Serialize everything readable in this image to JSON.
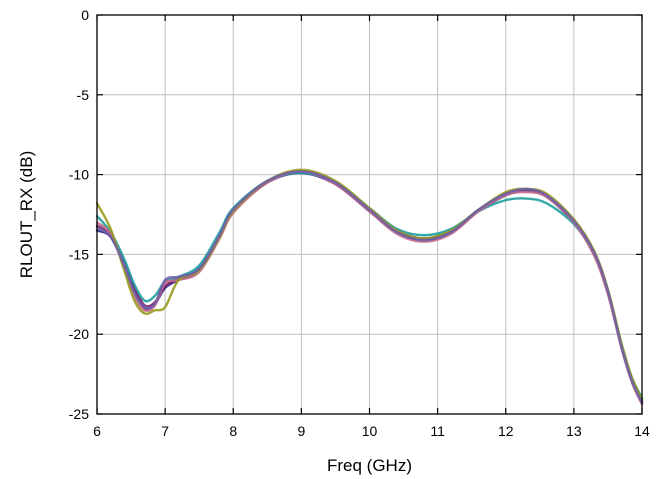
{
  "chart_data": {
    "type": "line",
    "title": "",
    "xlabel": "Freq (GHz)",
    "ylabel": "RLOUT_RX (dB)",
    "xlim": [
      6,
      14
    ],
    "ylim": [
      -25,
      0
    ],
    "xticks": [
      6,
      7,
      8,
      9,
      10,
      11,
      12,
      13,
      14
    ],
    "yticks": [
      0,
      -5,
      -10,
      -15,
      -20,
      -25
    ],
    "xtick_labels": [
      "6",
      "7",
      "8",
      "9",
      "10",
      "11",
      "12",
      "13",
      "14"
    ],
    "ytick_labels": [
      "0",
      "-5",
      "-10",
      "-15",
      "-20",
      "-25"
    ],
    "grid": true,
    "legend": "none",
    "series": [
      {
        "color": "#2d2d8c",
        "x": [
          6,
          6.2,
          6.4,
          6.55,
          6.7,
          6.85,
          7.0,
          7.2,
          7.5,
          7.8,
          8.0,
          8.5,
          9.0,
          9.5,
          10.0,
          10.4,
          10.8,
          11.2,
          11.6,
          12.0,
          12.3,
          12.6,
          13.0,
          13.3,
          13.5,
          13.7,
          13.85,
          14.0
        ],
        "y": [
          -13.5,
          -13.9,
          -15.6,
          -17.2,
          -18.4,
          -18.1,
          -17.1,
          -16.6,
          -16.0,
          -13.9,
          -12.3,
          -10.5,
          -9.9,
          -10.6,
          -12.3,
          -13.6,
          -14.1,
          -13.6,
          -12.3,
          -11.3,
          -11.0,
          -11.4,
          -13.0,
          -15.0,
          -17.4,
          -20.8,
          -22.9,
          -24.3
        ]
      },
      {
        "color": "#7b1f6e",
        "x": [
          6,
          6.2,
          6.4,
          6.55,
          6.7,
          6.85,
          7.0,
          7.2,
          7.5,
          7.8,
          8.0,
          8.5,
          9.0,
          9.5,
          10.0,
          10.4,
          10.8,
          11.2,
          11.6,
          12.0,
          12.3,
          12.6,
          13.0,
          13.3,
          13.5,
          13.7,
          13.85,
          14.0
        ],
        "y": [
          -13.2,
          -13.8,
          -15.5,
          -17.1,
          -18.2,
          -18.0,
          -17.0,
          -16.5,
          -15.9,
          -13.8,
          -12.2,
          -10.4,
          -9.8,
          -10.5,
          -12.2,
          -13.5,
          -14.0,
          -13.5,
          -12.2,
          -11.2,
          -10.9,
          -11.3,
          -12.9,
          -14.9,
          -17.3,
          -20.7,
          -22.8,
          -24.2
        ]
      },
      {
        "color": "#1f9e9e",
        "x": [
          6,
          6.2,
          6.4,
          6.55,
          6.7,
          6.85,
          7.0,
          7.2,
          7.5,
          7.8,
          8.0,
          8.5,
          9.0,
          9.5,
          10.0,
          10.4,
          10.8,
          11.2,
          11.6,
          12.0,
          12.3,
          12.6,
          13.0,
          13.3,
          13.5,
          13.7,
          13.85,
          14.0
        ],
        "y": [
          -12.6,
          -13.6,
          -15.3,
          -16.9,
          -17.9,
          -17.6,
          -16.7,
          -16.4,
          -15.7,
          -13.6,
          -12.1,
          -10.4,
          -9.9,
          -10.5,
          -12.1,
          -13.4,
          -13.8,
          -13.4,
          -12.3,
          -11.6,
          -11.5,
          -11.8,
          -13.1,
          -15.0,
          -17.3,
          -20.6,
          -22.7,
          -24.0
        ]
      },
      {
        "color": "#c46a8c",
        "x": [
          6,
          6.2,
          6.4,
          6.55,
          6.7,
          6.85,
          7.0,
          7.2,
          7.5,
          7.8,
          8.0,
          8.5,
          9.0,
          9.5,
          10.0,
          10.4,
          10.8,
          11.2,
          11.6,
          12.0,
          12.3,
          12.6,
          13.0,
          13.3,
          13.5,
          13.7,
          13.85,
          14.0
        ],
        "y": [
          -13.0,
          -13.7,
          -15.8,
          -17.6,
          -18.5,
          -18.2,
          -16.8,
          -16.6,
          -16.1,
          -14.0,
          -12.4,
          -10.5,
          -9.8,
          -10.6,
          -12.3,
          -13.7,
          -14.2,
          -13.7,
          -12.3,
          -11.3,
          -11.1,
          -11.4,
          -13.0,
          -15.1,
          -17.5,
          -20.9,
          -23.0,
          -24.4
        ]
      },
      {
        "color": "#9a9a1e",
        "x": [
          6,
          6.2,
          6.4,
          6.55,
          6.7,
          6.85,
          7.0,
          7.2,
          7.5,
          7.8,
          8.0,
          8.5,
          9.0,
          9.5,
          10.0,
          10.4,
          10.8,
          11.2,
          11.6,
          12.0,
          12.3,
          12.6,
          13.0,
          13.3,
          13.5,
          13.7,
          13.85,
          14.0
        ],
        "y": [
          -11.8,
          -13.4,
          -16.0,
          -17.9,
          -18.7,
          -18.5,
          -18.3,
          -16.6,
          -16.0,
          -13.9,
          -12.3,
          -10.4,
          -9.7,
          -10.4,
          -12.1,
          -13.5,
          -14.0,
          -13.5,
          -12.2,
          -11.1,
          -10.9,
          -11.2,
          -12.8,
          -14.8,
          -17.2,
          -20.6,
          -22.7,
          -24.1
        ]
      },
      {
        "color": "#6f5fa8",
        "x": [
          6,
          6.2,
          6.4,
          6.55,
          6.7,
          6.85,
          7.0,
          7.2,
          7.5,
          7.8,
          8.0,
          8.5,
          9.0,
          9.5,
          10.0,
          10.4,
          10.8,
          11.2,
          11.6,
          12.0,
          12.3,
          12.6,
          13.0,
          13.3,
          13.5,
          13.7,
          13.85,
          14.0
        ],
        "y": [
          -13.3,
          -13.9,
          -15.7,
          -17.4,
          -18.3,
          -18.1,
          -16.6,
          -16.4,
          -15.9,
          -13.8,
          -12.2,
          -10.4,
          -9.8,
          -10.5,
          -12.2,
          -13.6,
          -14.1,
          -13.6,
          -12.2,
          -11.2,
          -10.9,
          -11.3,
          -12.9,
          -14.9,
          -17.3,
          -20.8,
          -22.9,
          -24.3
        ]
      }
    ]
  }
}
